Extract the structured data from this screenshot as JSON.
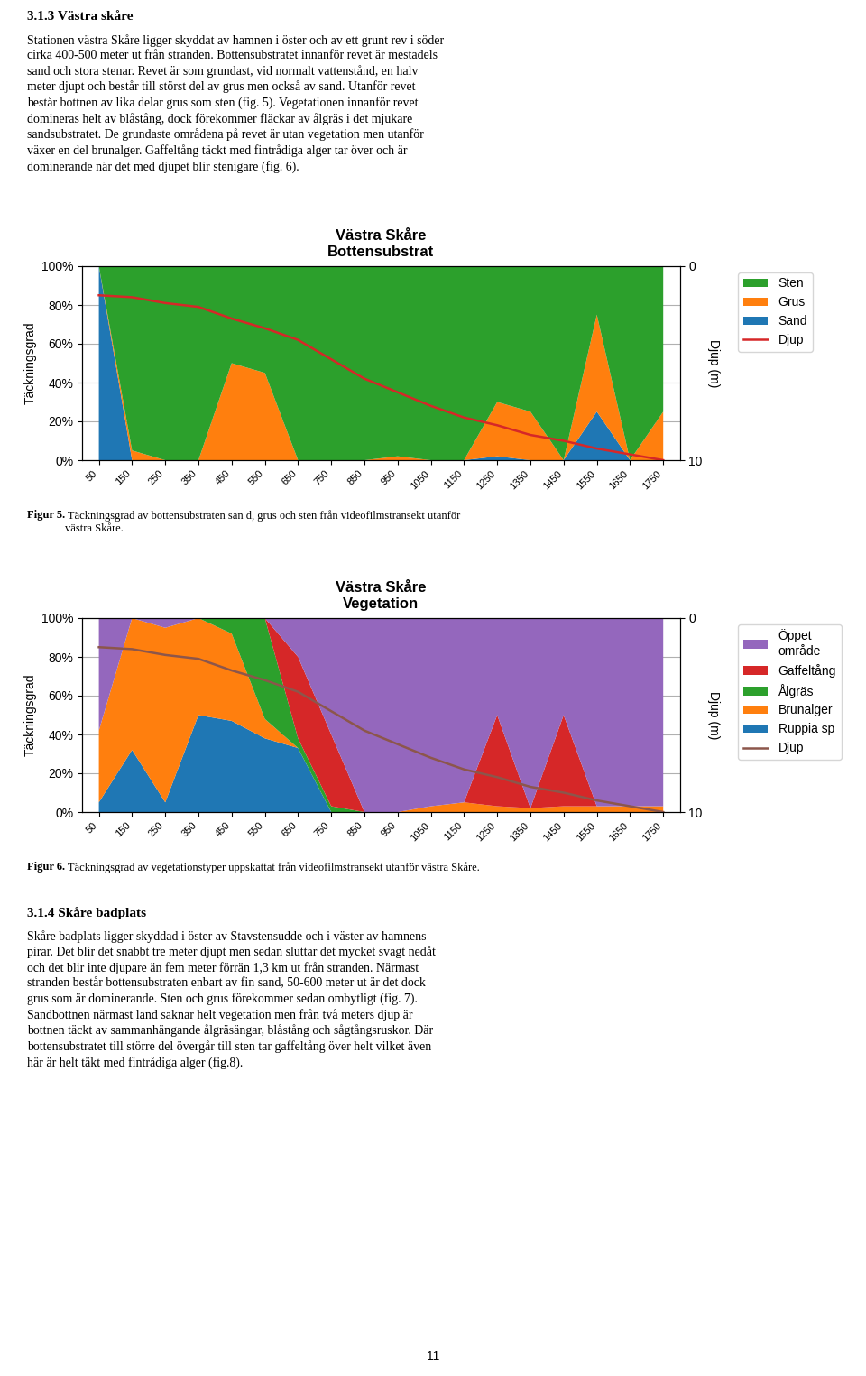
{
  "text_before": {
    "title": "3.1.3 Västra skåre",
    "body": "Stationen västra Skåre ligger skyddat av hamnen i öster och av ett grunt rev i söder\ncirka 400-500 meter ut från stranden. Bottensubstratet innanför revet är mestadels\nsand och stora stenar. Revet är som grundast, vid normalt vattenstånd, en halv\nmeter djupt och består till störst del av grus men också av sand. Utanför revet\nbestår bottnen av lika delar grus som sten (fig. 5). Vegetationen innanför revet\ndomineras helt av blåstång, dock förekommer fläckar av ålgräs i det mjukare\nsandsubstratet. De grundaste områdena på revet är utan vegetation men utanför\nväxer en del brunalger. Gaffeltång täckt med fintrådiga alger tar över och är\ndominerande när det med djupet blir stenigare (fig. 6)."
  },
  "chart_data": [
    {
      "type": "area",
      "title": "Västra Skåre",
      "subtitle": "Bottensubstrat",
      "stacked": true,
      "grid": true,
      "legend": "upper left",
      "x": [
        50,
        150,
        250,
        350,
        450,
        550,
        650,
        750,
        850,
        950,
        1050,
        1150,
        1250,
        1350,
        1450,
        1550,
        1650,
        1750
      ],
      "xlim": [
        0,
        1800
      ],
      "xticks": [
        50,
        150,
        250,
        350,
        450,
        550,
        650,
        750,
        850,
        950,
        1050,
        1150,
        1250,
        1350,
        1450,
        1550,
        1650,
        1750
      ],
      "ylim": [
        0,
        100
      ],
      "yticks": [
        {
          "value": 0,
          "label": "0%"
        },
        {
          "value": 20,
          "label": "20%"
        },
        {
          "value": 40,
          "label": "40%"
        },
        {
          "value": 60,
          "label": "60%"
        },
        {
          "value": 80,
          "label": "80%"
        },
        {
          "value": 100,
          "label": "100%"
        }
      ],
      "ylabel": "Täckningsgrad",
      "y2lim": [
        10,
        0
      ],
      "y2ticks": [
        0,
        10
      ],
      "y2label": "Djup (m)",
      "series": [
        {
          "name": "Sand",
          "values": [
            100,
            0,
            0,
            0,
            0,
            0,
            0,
            0,
            0,
            0,
            0,
            0,
            2,
            0,
            0,
            25,
            0,
            0
          ]
        },
        {
          "name": "Grus",
          "values": [
            0,
            5,
            0,
            0,
            50,
            45,
            0,
            0,
            0,
            2,
            0,
            0,
            28,
            25,
            0,
            50,
            0,
            25
          ]
        },
        {
          "name": "Sten",
          "values": [
            0,
            95,
            100,
            100,
            50,
            55,
            100,
            100,
            100,
            98,
            100,
            100,
            70,
            75,
            100,
            25,
            100,
            75
          ]
        },
        {
          "name": "Djup",
          "type": "line",
          "axis": "y2",
          "values": [
            1.5,
            1.6,
            1.9,
            2.1,
            2.7,
            3.2,
            3.8,
            4.8,
            5.8,
            6.5,
            7.2,
            7.8,
            8.2,
            8.7,
            9.0,
            9.4,
            9.7,
            10.0
          ]
        }
      ],
      "caption": {
        "label": "Figur 5.",
        "text": " Täckningsgrad av bottensubstraten san d, grus och sten från videofilmstransekt utanför\nvästra Skåre."
      }
    },
    {
      "type": "area",
      "title": "Västra Skåre",
      "subtitle": "Vegetation",
      "stacked": true,
      "grid": true,
      "legend": "upper left",
      "x": [
        50,
        150,
        250,
        350,
        450,
        550,
        650,
        750,
        850,
        950,
        1050,
        1150,
        1250,
        1350,
        1450,
        1550,
        1650,
        1750
      ],
      "xlim": [
        0,
        1800
      ],
      "xticks": [
        50,
        150,
        250,
        350,
        450,
        550,
        650,
        750,
        850,
        950,
        1050,
        1150,
        1250,
        1350,
        1450,
        1550,
        1650,
        1750
      ],
      "ylim": [
        0,
        100
      ],
      "yticks": [
        {
          "value": 0,
          "label": "0%"
        },
        {
          "value": 20,
          "label": "20%"
        },
        {
          "value": 40,
          "label": "40%"
        },
        {
          "value": 60,
          "label": "60%"
        },
        {
          "value": 80,
          "label": "80%"
        },
        {
          "value": 100,
          "label": "100%"
        }
      ],
      "ylabel": "Täckningsgrad",
      "y2lim": [
        10,
        0
      ],
      "y2ticks": [
        0,
        10
      ],
      "y2label": "Djup (m)",
      "series": [
        {
          "name": "Ruppia sp",
          "values": [
            5,
            32,
            5,
            50,
            47,
            38,
            33,
            0,
            0,
            0,
            0,
            0,
            0,
            0,
            0,
            0,
            0,
            0
          ]
        },
        {
          "name": "Brunalger",
          "values": [
            37,
            68,
            90,
            50,
            45,
            10,
            0,
            0,
            0,
            0,
            3,
            5,
            3,
            2,
            3,
            3,
            3,
            3
          ]
        },
        {
          "name": "Ålgräs",
          "values": [
            0,
            0,
            0,
            0,
            8,
            52,
            5,
            3,
            0,
            0,
            0,
            0,
            0,
            0,
            0,
            0,
            0,
            0
          ]
        },
        {
          "name": "Gaffeltång",
          "values": [
            0,
            0,
            0,
            0,
            0,
            0,
            42,
            37,
            0,
            0,
            0,
            0,
            47,
            0,
            47,
            0,
            0,
            0
          ]
        },
        {
          "name": "Öppet\nområde",
          "values": [
            58,
            0,
            5,
            0,
            0,
            0,
            20,
            60,
            100,
            100,
            97,
            95,
            50,
            98,
            50,
            97,
            97,
            97
          ]
        },
        {
          "name": "Djup",
          "type": "line",
          "axis": "y2",
          "values": [
            1.5,
            1.6,
            1.9,
            2.1,
            2.7,
            3.2,
            3.8,
            4.8,
            5.8,
            6.5,
            7.2,
            7.8,
            8.2,
            8.7,
            9.0,
            9.4,
            9.7,
            10.0
          ]
        }
      ],
      "caption": {
        "label": "Figur 6.",
        "text": " Täckningsgrad av vegetationstyper uppskattat från videofilmstransekt utanför västra Skåre."
      }
    }
  ],
  "text_after": {
    "title": "3.1.4 Skåre badplats",
    "body": "Skåre badplats ligger skyddad i öster av Stavstensudde och i väster av hamnens\npirar. Det blir det snabbt tre meter djupt men sedan sluttar det mycket svagt nedåt\noch det blir inte djupare än fem meter förrän 1,3 km ut från stranden. Närmast\nstranden består bottensubstraten enbart av fin sand, 50-600 meter ut är det dock\ngrus som är dominerande. Sten och grus förekommer sedan ombytligt (fig. 7).\nSandbottnen närmast land saknar helt vegetation men från två meters djup är\nbottnen täckt av sammanhängande ålgräsängar, blåstång och sågtångsruskor. Där\nbottensubstratet till större del övergår till sten tar gaffeltång över helt vilket även\nhär är helt täkt med fintrådiga alger (fig.8)."
  },
  "page_number": "11"
}
